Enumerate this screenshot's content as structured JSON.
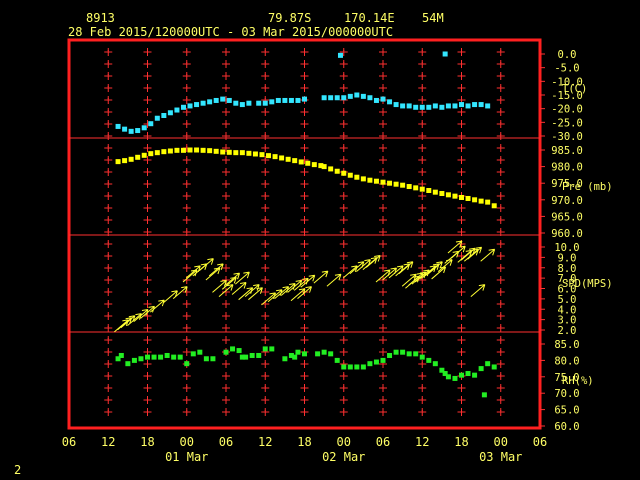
{
  "header": {
    "station_id": "8913",
    "lat": "79.87S",
    "lon": "170.14E",
    "elev": "54M",
    "time_range": "28 Feb 2015/120000UTC - 03 Mar 2015/000000UTC"
  },
  "footer": {
    "page_number": "2"
  },
  "colors": {
    "frame": "#ff2020",
    "grid": "#ff3030",
    "axis_text": "#ffff66",
    "temperature": "#33e6ff",
    "pressure": "#ffff00",
    "wind": "#ffff33",
    "humidity": "#22ee22"
  },
  "chart_data": {
    "type": "scatter",
    "x_units": "hours since 28 Feb 2015 06 UTC",
    "x_range": [
      0,
      72
    ],
    "x_tick_labels": [
      "06",
      "12",
      "18",
      "00",
      "06",
      "12",
      "18",
      "00",
      "06",
      "12",
      "18",
      "00",
      "06"
    ],
    "x_date_labels": [
      {
        "label": "01 Mar",
        "x": 18
      },
      {
        "label": "02 Mar",
        "x": 42
      },
      {
        "label": "03 Mar",
        "x": 66
      }
    ],
    "panels": [
      {
        "id": "temperature",
        "label": "T(C)",
        "range": [
          -30,
          0
        ],
        "ticks": [
          "0.0",
          "-5.0",
          "-10.0",
          "-15.0",
          "-20.0",
          "-25.0",
          "-30.0"
        ],
        "series": [
          [
            7.5,
            -26.5
          ],
          [
            8.5,
            -27.5
          ],
          [
            9.5,
            -28.3
          ],
          [
            10.5,
            -28.0
          ],
          [
            11.5,
            -27.0
          ],
          [
            12.5,
            -25.5
          ],
          [
            13.5,
            -23.5
          ],
          [
            14.5,
            -22.5
          ],
          [
            15.5,
            -21.5
          ],
          [
            16.5,
            -20.5
          ],
          [
            17.5,
            -19.5
          ],
          [
            18.5,
            -19.0
          ],
          [
            19.5,
            -18.5
          ],
          [
            20.5,
            -18.0
          ],
          [
            21.5,
            -17.5
          ],
          [
            22.5,
            -17.0
          ],
          [
            23.5,
            -16.5
          ],
          [
            24.5,
            -17.0
          ],
          [
            25.5,
            -18.0
          ],
          [
            26.5,
            -18.5
          ],
          [
            27.5,
            -18.0
          ],
          [
            29,
            -18.0
          ],
          [
            30,
            -18.0
          ],
          [
            31,
            -17.5
          ],
          [
            32,
            -17.0
          ],
          [
            33,
            -17.0
          ],
          [
            34,
            -17.0
          ],
          [
            35,
            -17.0
          ],
          [
            36,
            -16.5
          ],
          [
            39,
            -16.0
          ],
          [
            40,
            -16.0
          ],
          [
            41,
            -16.0
          ],
          [
            42,
            -16.0
          ],
          [
            43,
            -15.5
          ],
          [
            44,
            -15.0
          ],
          [
            45,
            -15.5
          ],
          [
            46,
            -16.0
          ],
          [
            47,
            -17.0
          ],
          [
            48,
            -16.5
          ],
          [
            49,
            -17.5
          ],
          [
            50,
            -18.5
          ],
          [
            51,
            -19.0
          ],
          [
            52,
            -19.0
          ],
          [
            53,
            -19.5
          ],
          [
            54,
            -19.5
          ],
          [
            55,
            -19.5
          ],
          [
            56,
            -19.0
          ],
          [
            57,
            -19.5
          ],
          [
            58,
            -19.0
          ],
          [
            59,
            -19.0
          ],
          [
            60,
            -18.5
          ],
          [
            61,
            -19.0
          ],
          [
            62,
            -18.5
          ],
          [
            63,
            -18.5
          ],
          [
            64,
            -19.0
          ],
          [
            41.5,
            -0.5
          ],
          [
            57.5,
            0.0
          ]
        ]
      },
      {
        "id": "pressure",
        "label": "Pre (mb)",
        "range": [
          960,
          985
        ],
        "ticks": [
          "985.0",
          "980.0",
          "975.0",
          "970.0",
          "965.0",
          "960.0"
        ],
        "series": [
          [
            7.5,
            981.5
          ],
          [
            8.5,
            981.8
          ],
          [
            9.5,
            982.2
          ],
          [
            10.5,
            982.8
          ],
          [
            11.5,
            983.4
          ],
          [
            12.5,
            983.9
          ],
          [
            13.5,
            984.2
          ],
          [
            14.5,
            984.5
          ],
          [
            15.5,
            984.7
          ],
          [
            16.5,
            984.9
          ],
          [
            17.5,
            984.9
          ],
          [
            18.5,
            985.0
          ],
          [
            19.5,
            985.0
          ],
          [
            20.5,
            984.9
          ],
          [
            21.5,
            984.8
          ],
          [
            22.5,
            984.6
          ],
          [
            23.5,
            984.4
          ],
          [
            24.5,
            984.3
          ],
          [
            25.5,
            984.2
          ],
          [
            26.5,
            984.2
          ],
          [
            27.5,
            984.0
          ],
          [
            28.5,
            983.8
          ],
          [
            29.5,
            983.6
          ],
          [
            30.5,
            983.3
          ],
          [
            31.5,
            983.0
          ],
          [
            32.5,
            982.6
          ],
          [
            33.5,
            982.2
          ],
          [
            34.5,
            981.8
          ],
          [
            35.5,
            981.4
          ],
          [
            36.5,
            981.0
          ],
          [
            37.5,
            980.6
          ],
          [
            38.5,
            980.3
          ],
          [
            39,
            980.0
          ],
          [
            40,
            979.3
          ],
          [
            41,
            978.6
          ],
          [
            42,
            978.0
          ],
          [
            43,
            977.4
          ],
          [
            44,
            976.8
          ],
          [
            45,
            976.3
          ],
          [
            46,
            975.9
          ],
          [
            47,
            975.6
          ],
          [
            48,
            975.3
          ],
          [
            49,
            975.0
          ],
          [
            50,
            974.7
          ],
          [
            51,
            974.4
          ],
          [
            52,
            974.0
          ],
          [
            53,
            973.6
          ],
          [
            54,
            973.2
          ],
          [
            55,
            972.8
          ],
          [
            56,
            972.3
          ],
          [
            57,
            971.9
          ],
          [
            58,
            971.5
          ],
          [
            59,
            971.1
          ],
          [
            60,
            970.7
          ],
          [
            61,
            970.4
          ],
          [
            62,
            970.0
          ],
          [
            63,
            969.6
          ],
          [
            64,
            969.3
          ],
          [
            65,
            968.2
          ]
        ]
      },
      {
        "id": "wind_speed",
        "label": "SPD(MPS)",
        "range": [
          2,
          10
        ],
        "ticks": [
          "10.0",
          "9.0",
          "8.0",
          "7.0",
          "6.0",
          "5.0",
          "4.0",
          "3.0",
          "2.0"
        ],
        "series": [
          [
            8,
            2.4
          ],
          [
            8.5,
            2.6
          ],
          [
            9,
            2.8
          ],
          [
            10,
            3.0
          ],
          [
            11,
            3.4
          ],
          [
            12,
            3.7
          ],
          [
            13.5,
            4.3
          ],
          [
            15.5,
            5.2
          ],
          [
            17,
            5.6
          ],
          [
            18.5,
            7.2
          ],
          [
            19,
            7.6
          ],
          [
            20,
            7.8
          ],
          [
            21,
            8.3
          ],
          [
            22,
            7.4
          ],
          [
            22.5,
            7.8
          ],
          [
            23,
            6.2
          ],
          [
            24,
            5.8
          ],
          [
            24.5,
            6.5
          ],
          [
            25,
            6.9
          ],
          [
            26,
            6.0
          ],
          [
            26.5,
            7.0
          ],
          [
            27,
            5.5
          ],
          [
            28,
            5.8
          ],
          [
            28.5,
            5.5
          ],
          [
            30.5,
            5.0
          ],
          [
            31.5,
            5.3
          ],
          [
            32.5,
            5.6
          ],
          [
            33.5,
            5.9
          ],
          [
            34.5,
            6.2
          ],
          [
            35,
            5.4
          ],
          [
            35.5,
            6.4
          ],
          [
            36,
            5.6
          ],
          [
            36.5,
            6.7
          ],
          [
            38.5,
            7.1
          ],
          [
            40.5,
            6.8
          ],
          [
            43,
            7.6
          ],
          [
            44,
            8.0
          ],
          [
            45,
            8.2
          ],
          [
            46,
            8.4
          ],
          [
            46.5,
            8.6
          ],
          [
            48,
            7.2
          ],
          [
            49,
            7.4
          ],
          [
            50,
            7.6
          ],
          [
            51,
            7.8
          ],
          [
            51.5,
            8.0
          ],
          [
            52,
            6.8
          ],
          [
            52.5,
            6.6
          ],
          [
            53,
            6.9
          ],
          [
            53.5,
            7.0
          ],
          [
            54,
            7.2
          ],
          [
            55,
            7.6
          ],
          [
            55.5,
            7.8
          ],
          [
            56,
            8.0
          ],
          [
            56.5,
            7.5
          ],
          [
            57.5,
            8.2
          ],
          [
            58.5,
            9.0
          ],
          [
            59,
            10.0
          ],
          [
            59.5,
            9.5
          ],
          [
            60.5,
            9.1
          ],
          [
            61,
            9.3
          ],
          [
            61.5,
            9.2
          ],
          [
            62,
            9.4
          ],
          [
            62.5,
            5.8
          ],
          [
            64,
            9.2
          ]
        ]
      },
      {
        "id": "humidity",
        "label": "RH(%)",
        "range": [
          60,
          85
        ],
        "ticks": [
          "85.0",
          "80.0",
          "75.0",
          "70.0",
          "65.0",
          "60.0"
        ],
        "series": [
          [
            7.5,
            80.5
          ],
          [
            8,
            81.5
          ],
          [
            9,
            79.0
          ],
          [
            10,
            80.0
          ],
          [
            11,
            80.5
          ],
          [
            12,
            81.0
          ],
          [
            13,
            81.0
          ],
          [
            14,
            81.0
          ],
          [
            15,
            81.5
          ],
          [
            16,
            81.0
          ],
          [
            17,
            81.0
          ],
          [
            18,
            79.0
          ],
          [
            19,
            82.0
          ],
          [
            20,
            82.5
          ],
          [
            21,
            80.5
          ],
          [
            22,
            80.5
          ],
          [
            24,
            82.5
          ],
          [
            25,
            83.5
          ],
          [
            26,
            83.0
          ],
          [
            26.5,
            81.0
          ],
          [
            27,
            81.0
          ],
          [
            28,
            81.5
          ],
          [
            29,
            81.5
          ],
          [
            30,
            83.5
          ],
          [
            31,
            83.5
          ],
          [
            33,
            80.5
          ],
          [
            34,
            81.5
          ],
          [
            34.5,
            81.0
          ],
          [
            35,
            82.5
          ],
          [
            36,
            82.0
          ],
          [
            38,
            82.0
          ],
          [
            39,
            82.5
          ],
          [
            40,
            82.0
          ],
          [
            41,
            80.0
          ],
          [
            42,
            78.0
          ],
          [
            43,
            78.0
          ],
          [
            44,
            78.0
          ],
          [
            45,
            78.0
          ],
          [
            46,
            79.0
          ],
          [
            47,
            79.5
          ],
          [
            48,
            80.0
          ],
          [
            49,
            81.5
          ],
          [
            50,
            82.5
          ],
          [
            51,
            82.5
          ],
          [
            52,
            82.0
          ],
          [
            53,
            82.0
          ],
          [
            54,
            81.0
          ],
          [
            55,
            80.0
          ],
          [
            56,
            79.0
          ],
          [
            57,
            77.0
          ],
          [
            57.5,
            76.0
          ],
          [
            58,
            75.0
          ],
          [
            59,
            74.5
          ],
          [
            60,
            75.5
          ],
          [
            61,
            76.0
          ],
          [
            62,
            75.5
          ],
          [
            63,
            77.5
          ],
          [
            63.5,
            69.5
          ],
          [
            64,
            79.0
          ],
          [
            65,
            78.0
          ]
        ]
      }
    ]
  }
}
